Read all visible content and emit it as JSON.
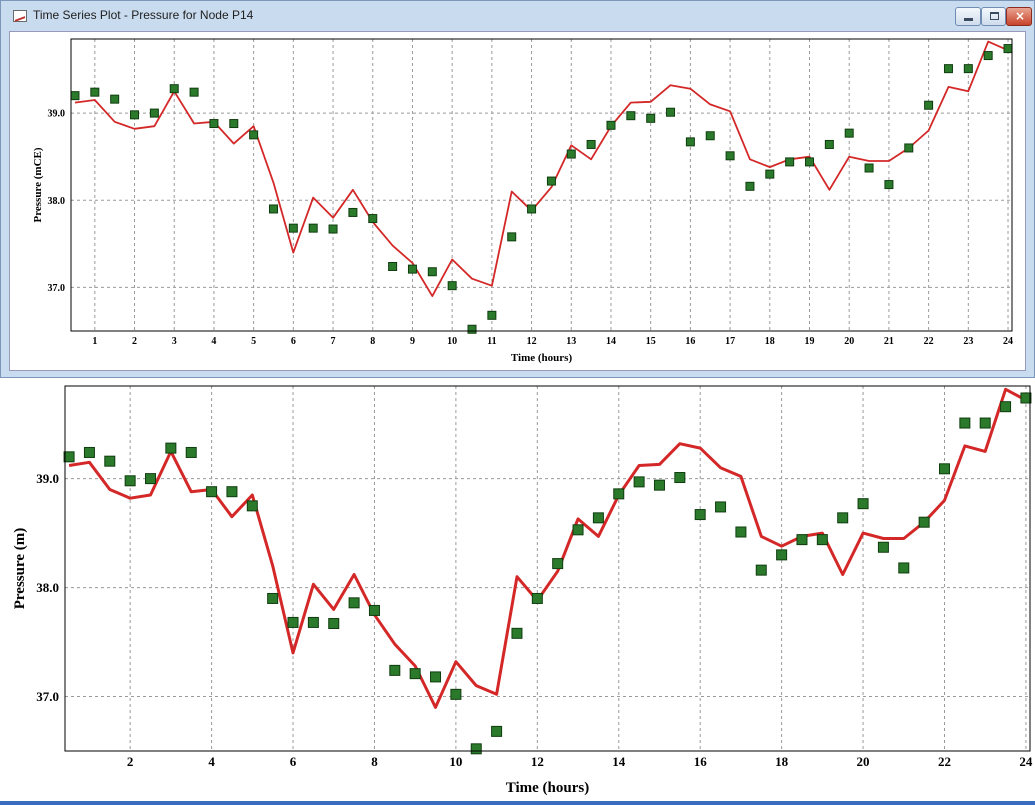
{
  "window": {
    "title": "Time Series Plot - Pressure for Node P14",
    "controls": {
      "minimize": "minimize",
      "maximize": "maximize",
      "close": "×"
    }
  },
  "colors": {
    "simulated_line": "#d42828",
    "observed_marker": "#2b7a2b",
    "observed_marker_edge": "#0f3d0f",
    "grid": "#9a9a9a",
    "frame": "#000000"
  },
  "top_chart": {
    "xlabel": "Time (hours)",
    "ylabel": "Pressure (mCE)",
    "x_ticks": [
      "1",
      "2",
      "3",
      "4",
      "5",
      "6",
      "7",
      "8",
      "9",
      "10",
      "11",
      "12",
      "13",
      "14",
      "15",
      "16",
      "17",
      "18",
      "19",
      "20",
      "21",
      "22",
      "23",
      "24"
    ],
    "y_ticks": [
      "39.0",
      "38.0",
      "37.0"
    ]
  },
  "bottom_chart": {
    "xlabel": "Time (hours)",
    "ylabel": "Pressure (m)",
    "x_ticks": [
      "2",
      "4",
      "6",
      "8",
      "10",
      "12",
      "14",
      "16",
      "18",
      "20",
      "22",
      "24"
    ],
    "y_ticks": [
      "39.0",
      "38.0",
      "37.0"
    ]
  },
  "chart_data": [
    {
      "type": "line",
      "xlim": [
        0.4,
        24.1
      ],
      "ylim": [
        36.5,
        39.85
      ],
      "grid": true,
      "series": [
        {
          "x": [
            0.5,
            1,
            1.5,
            2,
            2.5,
            3,
            3.5,
            4,
            4.5,
            5,
            5.5,
            6,
            6.5,
            7,
            7.5,
            8,
            8.5,
            9,
            9.5,
            10,
            10.5,
            11,
            11.5,
            12,
            12.5,
            13,
            13.5,
            14,
            14.5,
            15,
            15.5,
            16,
            16.5,
            17,
            17.5,
            18,
            18.5,
            19,
            19.5,
            20,
            20.5,
            21,
            21.5,
            22,
            22.5,
            23,
            23.5,
            24
          ],
          "y": [
            39.12,
            39.15,
            38.9,
            38.82,
            38.85,
            39.25,
            38.88,
            38.9,
            38.65,
            38.85,
            38.2,
            37.4,
            38.03,
            37.8,
            38.12,
            37.75,
            37.48,
            37.28,
            36.9,
            37.32,
            37.1,
            37.02,
            38.1,
            37.88,
            38.15,
            38.63,
            38.47,
            38.85,
            39.12,
            39.13,
            39.32,
            39.28,
            39.1,
            39.02,
            38.47,
            38.38,
            38.47,
            38.5,
            38.12,
            38.5,
            38.45,
            38.45,
            38.6,
            38.8,
            39.3,
            39.25,
            39.82,
            39.72
          ]
        },
        {
          "x": [
            0.5,
            1,
            1.5,
            2,
            2.5,
            3,
            3.5,
            4,
            4.5,
            5,
            5.5,
            6,
            6.5,
            7,
            7.5,
            8,
            8.5,
            9,
            9.5,
            10,
            10.5,
            11,
            11.5,
            12,
            12.5,
            13,
            13.5,
            14,
            14.5,
            15,
            15.5,
            16,
            16.5,
            17,
            17.5,
            18,
            18.5,
            19,
            19.5,
            20,
            20.5,
            21,
            21.5,
            22,
            22.5,
            23,
            23.5,
            24
          ],
          "y": [
            39.2,
            39.24,
            39.16,
            38.98,
            39.0,
            39.28,
            39.24,
            38.88,
            38.88,
            38.75,
            37.9,
            37.68,
            37.68,
            37.67,
            37.86,
            37.79,
            37.24,
            37.21,
            37.18,
            37.02,
            36.52,
            36.68,
            37.58,
            37.9,
            38.22,
            38.53,
            38.64,
            38.86,
            38.97,
            38.94,
            39.01,
            38.67,
            38.74,
            38.51,
            38.16,
            38.3,
            38.44,
            38.44,
            38.64,
            38.77,
            38.37,
            38.18,
            38.6,
            39.09,
            39.51,
            39.51,
            39.66,
            39.74
          ]
        }
      ]
    },
    {
      "type": "line",
      "xlim": [
        0.4,
        24.1
      ],
      "ylim": [
        36.5,
        39.85
      ],
      "grid": true,
      "series": [
        {
          "x": [
            0.5,
            1,
            1.5,
            2,
            2.5,
            3,
            3.5,
            4,
            4.5,
            5,
            5.5,
            6,
            6.5,
            7,
            7.5,
            8,
            8.5,
            9,
            9.5,
            10,
            10.5,
            11,
            11.5,
            12,
            12.5,
            13,
            13.5,
            14,
            14.5,
            15,
            15.5,
            16,
            16.5,
            17,
            17.5,
            18,
            18.5,
            19,
            19.5,
            20,
            20.5,
            21,
            21.5,
            22,
            22.5,
            23,
            23.5,
            24
          ],
          "y": [
            39.12,
            39.15,
            38.9,
            38.82,
            38.85,
            39.25,
            38.88,
            38.9,
            38.65,
            38.85,
            38.2,
            37.4,
            38.03,
            37.8,
            38.12,
            37.75,
            37.48,
            37.28,
            36.9,
            37.32,
            37.1,
            37.02,
            38.1,
            37.88,
            38.15,
            38.63,
            38.47,
            38.85,
            39.12,
            39.13,
            39.32,
            39.28,
            39.1,
            39.02,
            38.47,
            38.38,
            38.47,
            38.5,
            38.12,
            38.5,
            38.45,
            38.45,
            38.6,
            38.8,
            39.3,
            39.25,
            39.82,
            39.72
          ]
        },
        {
          "x": [
            0.5,
            1,
            1.5,
            2,
            2.5,
            3,
            3.5,
            4,
            4.5,
            5,
            5.5,
            6,
            6.5,
            7,
            7.5,
            8,
            8.5,
            9,
            9.5,
            10,
            10.5,
            11,
            11.5,
            12,
            12.5,
            13,
            13.5,
            14,
            14.5,
            15,
            15.5,
            16,
            16.5,
            17,
            17.5,
            18,
            18.5,
            19,
            19.5,
            20,
            20.5,
            21,
            21.5,
            22,
            22.5,
            23,
            23.5,
            24
          ],
          "y": [
            39.2,
            39.24,
            39.16,
            38.98,
            39.0,
            39.28,
            39.24,
            38.88,
            38.88,
            38.75,
            37.9,
            37.68,
            37.68,
            37.67,
            37.86,
            37.79,
            37.24,
            37.21,
            37.18,
            37.02,
            36.52,
            36.68,
            37.58,
            37.9,
            38.22,
            38.53,
            38.64,
            38.86,
            38.97,
            38.94,
            39.01,
            38.67,
            38.74,
            38.51,
            38.16,
            38.3,
            38.44,
            38.44,
            38.64,
            38.77,
            38.37,
            38.18,
            38.6,
            39.09,
            39.51,
            39.51,
            39.66,
            39.74
          ]
        }
      ]
    }
  ]
}
